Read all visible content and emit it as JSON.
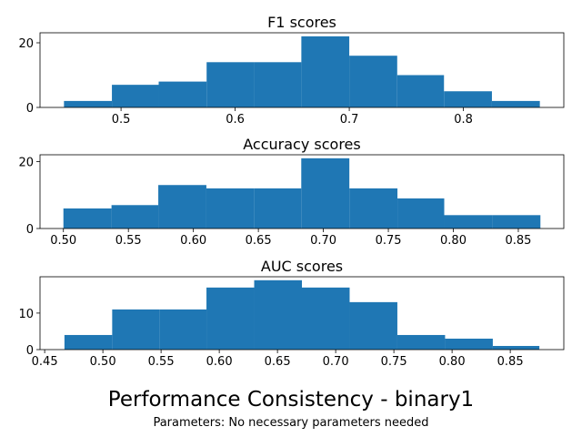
{
  "figure": {
    "suptitle": "Performance Consistency - binary1",
    "subtitle": "Parameters: No necessary parameters needed"
  },
  "colors": {
    "bar": "#1f77b4",
    "axis": "#000000"
  },
  "chart_data": [
    {
      "type": "bar",
      "title": "F1 scores",
      "bin_edges": [
        0.45,
        0.492,
        0.533,
        0.575,
        0.617,
        0.658,
        0.7,
        0.742,
        0.783,
        0.825,
        0.867
      ],
      "values": [
        2,
        7,
        8,
        14,
        14,
        22,
        16,
        10,
        5,
        2
      ],
      "xlim": [
        0.429,
        0.888
      ],
      "ylim": [
        0,
        23.1
      ],
      "xticks": [
        0.5,
        0.6,
        0.7,
        0.8
      ],
      "xtick_labels": [
        "0.5",
        "0.6",
        "0.7",
        "0.8"
      ],
      "yticks": [
        0,
        20
      ],
      "ytick_labels": [
        "0",
        "20"
      ],
      "xlabel": "",
      "ylabel": "",
      "grid": false
    },
    {
      "type": "bar",
      "title": "Accuracy scores",
      "bin_edges": [
        0.5,
        0.537,
        0.573,
        0.61,
        0.647,
        0.683,
        0.72,
        0.757,
        0.793,
        0.83,
        0.867
      ],
      "values": [
        6,
        7,
        13,
        12,
        12,
        21,
        12,
        9,
        4,
        4
      ],
      "xlim": [
        0.482,
        0.885
      ],
      "ylim": [
        0,
        22.05
      ],
      "xticks": [
        0.5,
        0.55,
        0.6,
        0.65,
        0.7,
        0.75,
        0.8,
        0.85
      ],
      "xtick_labels": [
        "0.50",
        "0.55",
        "0.60",
        "0.65",
        "0.70",
        "0.75",
        "0.80",
        "0.85"
      ],
      "yticks": [
        0,
        20
      ],
      "ytick_labels": [
        "0",
        "20"
      ],
      "xlabel": "",
      "ylabel": "",
      "grid": false
    },
    {
      "type": "bar",
      "title": "AUC scores",
      "bin_edges": [
        0.467,
        0.508,
        0.549,
        0.589,
        0.63,
        0.671,
        0.712,
        0.753,
        0.794,
        0.835,
        0.875
      ],
      "values": [
        4,
        11,
        11,
        17,
        19,
        17,
        13,
        4,
        3,
        1
      ],
      "xlim": [
        0.446,
        0.896
      ],
      "ylim": [
        0,
        19.95
      ],
      "xticks": [
        0.45,
        0.5,
        0.55,
        0.6,
        0.65,
        0.7,
        0.75,
        0.8,
        0.85
      ],
      "xtick_labels": [
        "0.45",
        "0.50",
        "0.55",
        "0.60",
        "0.65",
        "0.70",
        "0.75",
        "0.80",
        "0.85"
      ],
      "yticks": [
        0,
        10
      ],
      "ytick_labels": [
        "0",
        "10"
      ],
      "xlabel": "",
      "ylabel": "",
      "grid": false
    }
  ]
}
